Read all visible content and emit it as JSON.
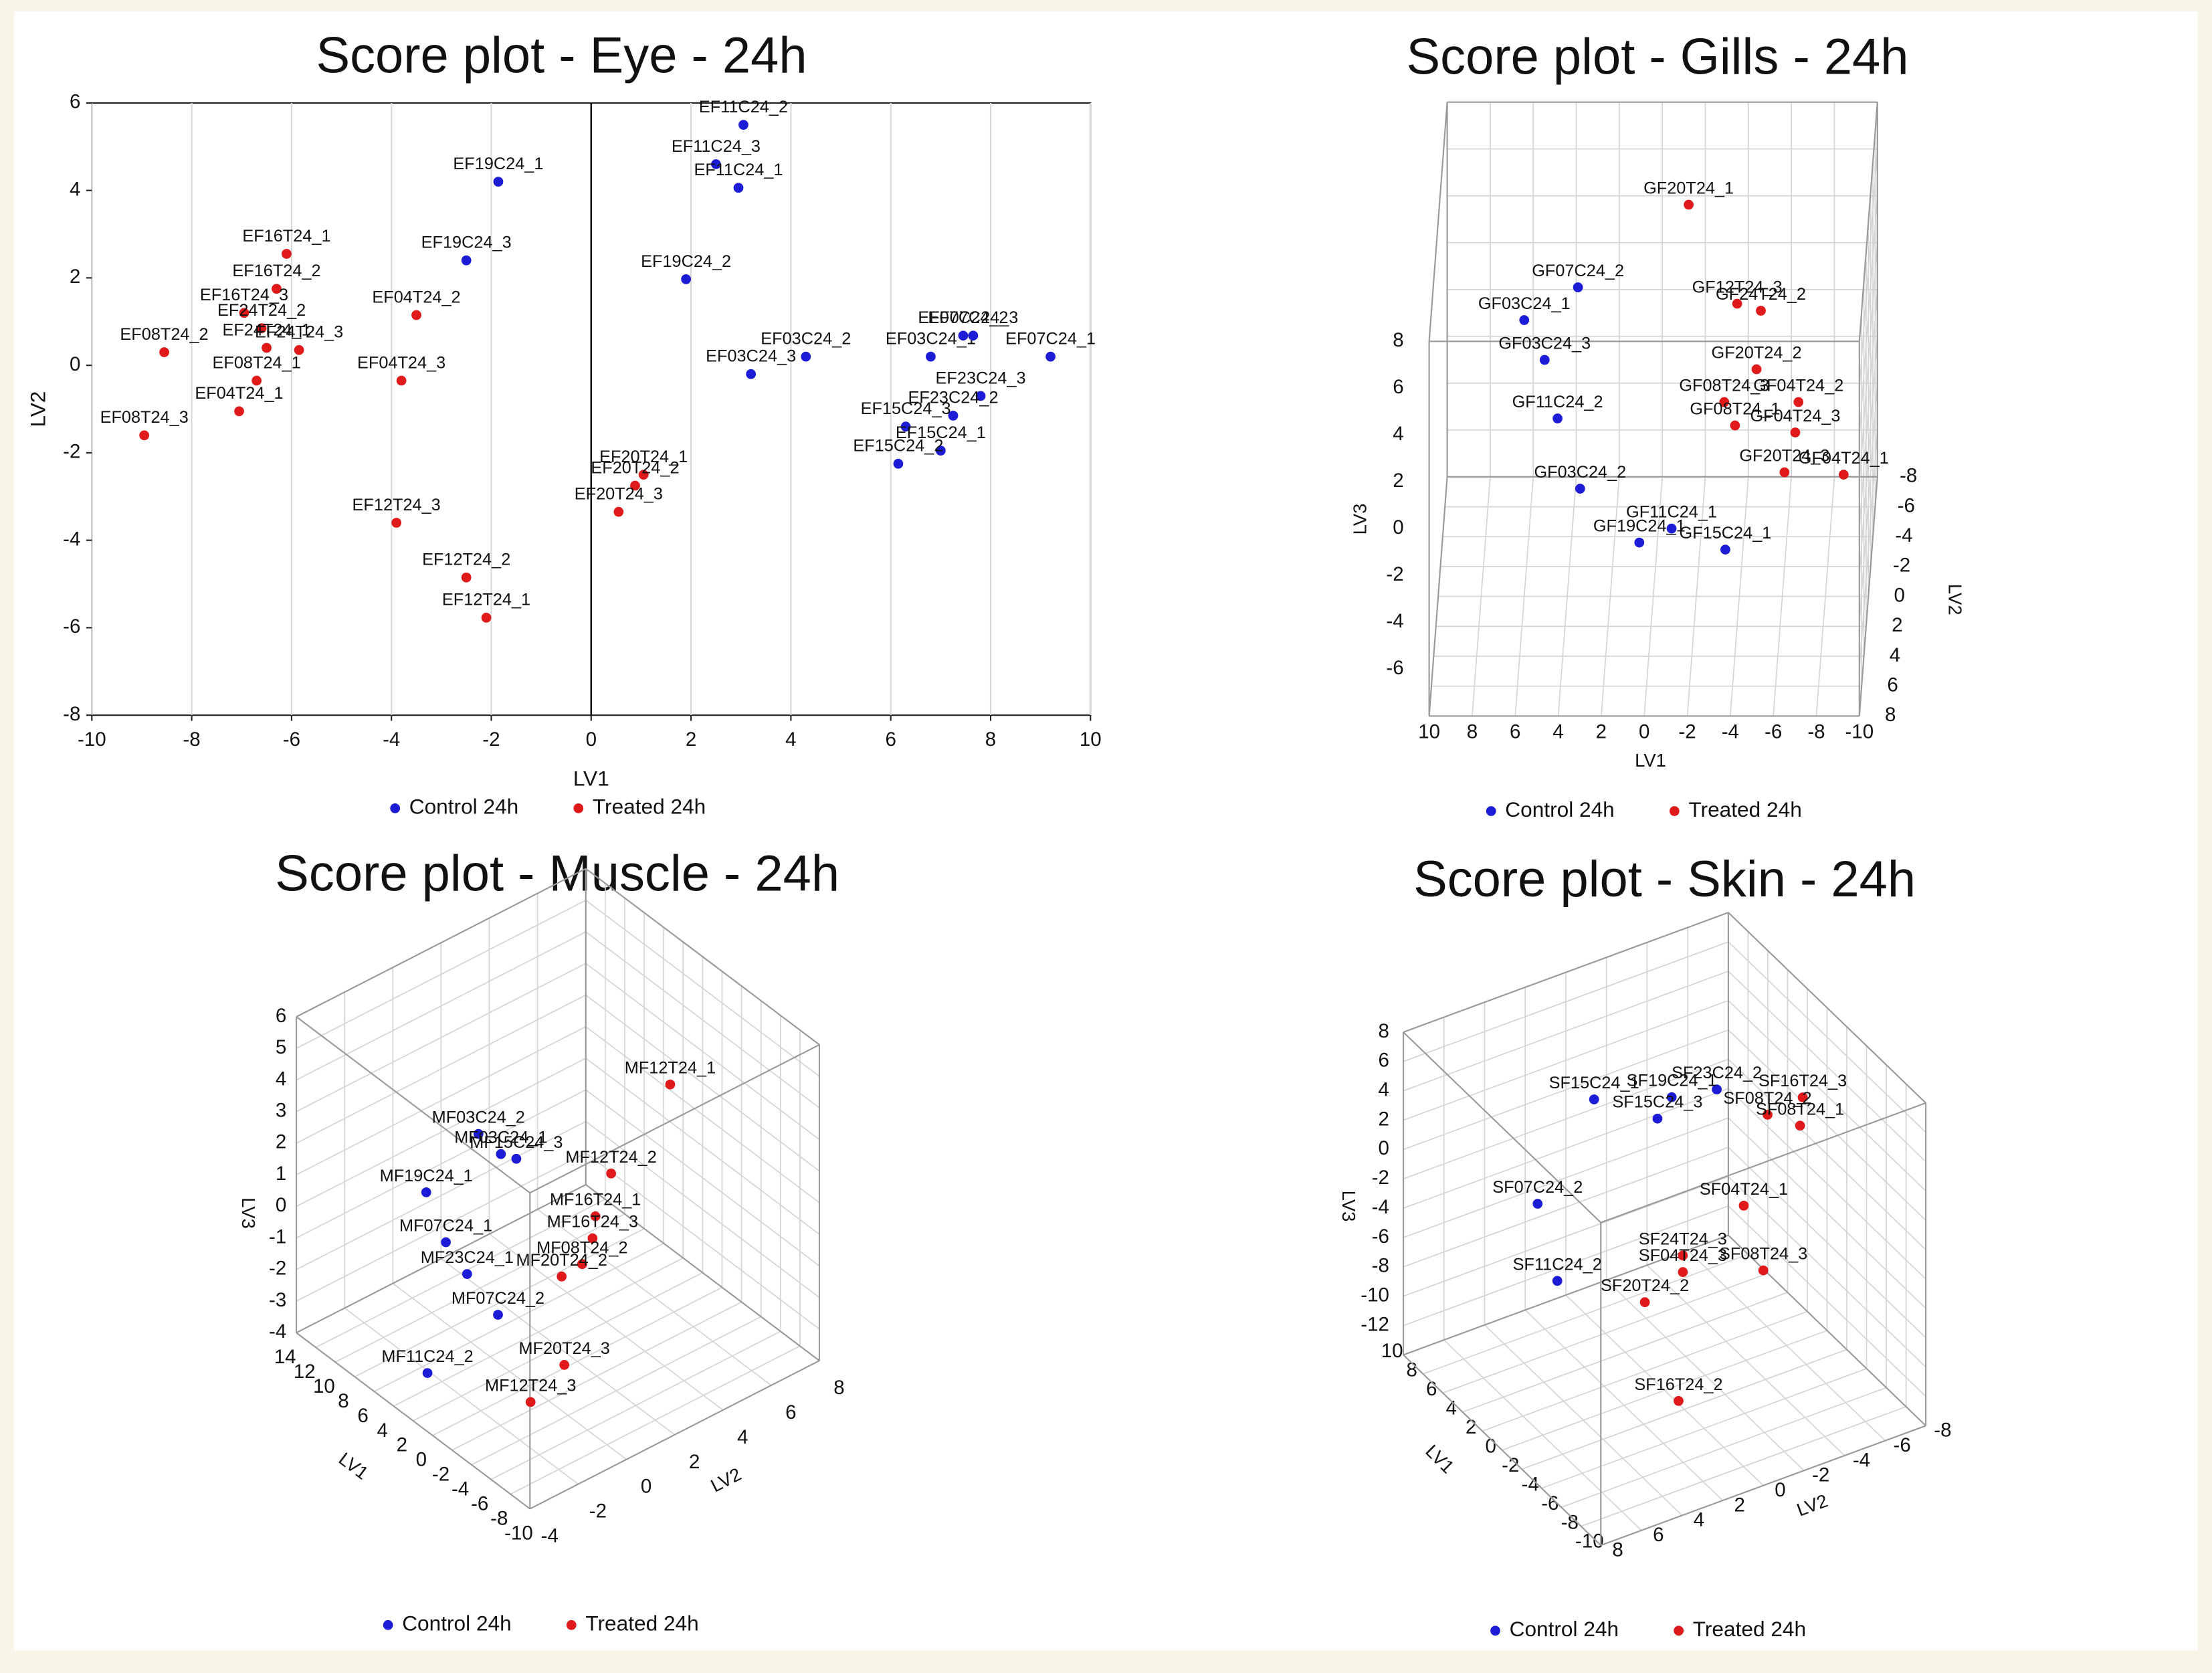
{
  "chart_data": [
    {
      "type": "scatter",
      "title": "Score plot - Eye - 24h",
      "xlabel": "LV1",
      "ylabel": "LV2",
      "xlim": [
        -10,
        10
      ],
      "ylim": [
        -8,
        6
      ],
      "xticks": [
        -10,
        -8,
        -6,
        -4,
        -2,
        0,
        2,
        4,
        6,
        8,
        10
      ],
      "yticks": [
        -8,
        -6,
        -4,
        -2,
        0,
        2,
        4,
        6
      ],
      "grid": "x",
      "legend": "bottom",
      "series": [
        {
          "name": "Control 24h",
          "color": "#1c1cd6",
          "labels": [
            "EF11C24_2",
            "EF11C24_3",
            "EF11C24_1",
            "EF19C24_1",
            "EF19C24_3",
            "EF19C24_2",
            "EF03C24_2",
            "EF03C24_3",
            "EF03C24_1",
            "EF07C24_2",
            "EF07C24_3",
            "EF07C24_1",
            "EF23C24_3",
            "EF23C24_2",
            "EF15C24_3",
            "EF15C24_1",
            "EF15C24_2"
          ],
          "x": [
            3.05,
            2.5,
            2.95,
            -1.86,
            -2.5,
            1.9,
            4.3,
            3.2,
            6.8,
            7.45,
            7.65,
            9.2,
            7.8,
            7.25,
            6.3,
            7.0,
            6.15
          ],
          "y": [
            5.5,
            4.6,
            4.06,
            4.2,
            2.4,
            1.97,
            0.2,
            -0.2,
            0.2,
            0.68,
            0.68,
            0.2,
            -0.7,
            -1.15,
            -1.4,
            -1.95,
            -2.25
          ]
        },
        {
          "name": "Treated 24h",
          "color": "#e01a1a",
          "labels": [
            "EF16T24_1",
            "EF16T24_2",
            "EF16T24_3",
            "EF24T24_2",
            "EF24T24_1",
            "EF24T24_3",
            "EF04T24_2",
            "EF08T24_2",
            "EF08T24_1",
            "EF04T24_3",
            "EF04T24_1",
            "EF08T24_3",
            "EF12T24_3",
            "EF12T24_2",
            "EF12T24_1",
            "EF20T24_1",
            "EF20T24_2",
            "EF20T24_3"
          ],
          "x": [
            -6.1,
            -6.3,
            -6.95,
            -6.6,
            -6.5,
            -5.85,
            -3.5,
            -8.55,
            -6.7,
            -3.8,
            -7.05,
            -8.95,
            -3.9,
            -2.5,
            -2.1,
            1.05,
            0.88,
            0.55
          ],
          "y": [
            2.55,
            1.75,
            1.2,
            0.85,
            0.4,
            0.35,
            1.15,
            0.3,
            -0.35,
            -0.35,
            -1.05,
            -1.6,
            -3.6,
            -4.85,
            -5.77,
            -2.5,
            -2.75,
            -3.35
          ]
        }
      ]
    },
    {
      "type": "scatter3d",
      "title": "Score plot - Gills - 24h",
      "xlabel": "LV1",
      "ylabel": "LV2",
      "zlabel": "LV3",
      "xlim": [
        -10,
        10
      ],
      "ylim": [
        -8,
        8
      ],
      "zlim": [
        -8,
        8
      ],
      "xticks": [
        -10,
        -8,
        -6,
        -4,
        -2,
        0,
        2,
        4,
        6,
        8,
        10
      ],
      "yticks": [
        -8,
        -6,
        -4,
        -2,
        0,
        2,
        4,
        6,
        8
      ],
      "zticks": [
        -6,
        -4,
        -2,
        0,
        2,
        4,
        6,
        8
      ],
      "grid": true,
      "legend": "bottom",
      "series": [
        {
          "name": "Control 24h",
          "color": "#1c1cd6",
          "labels": [
            "GF07C24_2",
            "GF03C24_1",
            "GF03C24_3",
            "GF11C24_2",
            "GF03C24_2",
            "GF19C24_1",
            "GF11C24_1",
            "GF15C24_1"
          ],
          "x": [
            3.5,
            6.0,
            5.05,
            4.45,
            3.4,
            0.65,
            -0.85,
            -3.35
          ],
          "y": [
            0,
            0,
            0,
            0,
            0,
            0,
            0,
            0
          ],
          "z": [
            5.2,
            3.8,
            2.1,
            -0.4,
            -3.4,
            -5.7,
            -5.1,
            -6.0
          ]
        },
        {
          "name": "Treated 24h",
          "color": "#e01a1a",
          "labels": [
            "GF20T24_1",
            "GF12T24_3",
            "GF24T24_2",
            "GF20T24_2",
            "GF08T24_3",
            "GF04T24_2",
            "GF08T24_1",
            "GF04T24_3",
            "GF20T24_3",
            "GF04T24_1"
          ],
          "x": [
            -1.54,
            -3.9,
            -5.0,
            -4.8,
            -3.3,
            -6.75,
            -3.8,
            -6.6,
            -6.1,
            -8.85
          ],
          "y": [
            -2,
            0,
            0,
            0,
            0,
            0,
            0,
            0,
            0,
            0
          ],
          "z": [
            7.45,
            4.5,
            4.2,
            1.7,
            0.3,
            0.3,
            -0.7,
            -1.0,
            -2.7,
            -2.8
          ]
        }
      ]
    },
    {
      "type": "scatter3d",
      "title": "Score plot - Muscle - 24h",
      "xlabel": "LV1",
      "ylabel": "LV2",
      "zlabel": "LV3",
      "xlim": [
        -10,
        14
      ],
      "ylim": [
        -4,
        8
      ],
      "zlim": [
        -4,
        6
      ],
      "xticks": [
        -10,
        -8,
        -6,
        -4,
        -2,
        0,
        2,
        4,
        6,
        8,
        10,
        12,
        14
      ],
      "yticks": [
        -4,
        -2,
        0,
        2,
        4,
        6,
        8
      ],
      "zticks": [
        -4,
        -3,
        -2,
        -1,
        0,
        1,
        2,
        3,
        4,
        5,
        6
      ],
      "grid": true,
      "legend": "bottom",
      "series": [
        {
          "name": "Control 24h",
          "color": "#1c1cd6",
          "labels": [
            "MF03C24_2",
            "MF03C24_1",
            "MF15C24_3",
            "MF19C24_1",
            "MF07C24_1",
            "MF23C24_1",
            "MF07C24_2",
            "MF11C24_2"
          ],
          "x": [
            0,
            0,
            0,
            4,
            0,
            0,
            0,
            4
          ],
          "y": [
            -2.1,
            -1.17,
            -0.53,
            -2.65,
            -3.45,
            -2.57,
            -1.29,
            -2.6
          ],
          "z": [
            4.8,
            3.8,
            3.4,
            2.24,
            1.9,
            0.55,
            -1.24,
            -3.5
          ]
        },
        {
          "name": "Treated 24h",
          "color": "#e01a1a",
          "labels": [
            "MF12T24_1",
            "MF12T24_2",
            "MF16T24_1",
            "MF16T24_3",
            "MF08T24_2",
            "MF20T24_2",
            "MF20T24_3",
            "MF12T24_3"
          ],
          "x": [
            0,
            0,
            0,
            0,
            0,
            0,
            0,
            -6
          ],
          "y": [
            5.85,
            3.4,
            2.75,
            2.63,
            2.2,
            1.35,
            1.46,
            -2.36
          ],
          "z": [
            3.26,
            1.4,
            0.3,
            -0.35,
            -1.0,
            -1.06,
            -3.9,
            -2.19
          ]
        }
      ]
    },
    {
      "type": "scatter3d",
      "title": "Score plot - Skin - 24h",
      "xlabel": "LV1",
      "ylabel": "LV2",
      "zlabel": "LV3",
      "xlim": [
        -10,
        10
      ],
      "ylim": [
        -8,
        8
      ],
      "zlim": [
        -14,
        8
      ],
      "xticks": [
        -10,
        -8,
        -6,
        -4,
        -2,
        0,
        2,
        4,
        6,
        8,
        10
      ],
      "yticks": [
        -8,
        -6,
        -4,
        -2,
        0,
        2,
        4,
        6,
        8
      ],
      "zticks": [
        -12,
        -10,
        -8,
        -6,
        -4,
        -2,
        0,
        2,
        4,
        6,
        8
      ],
      "grid": true,
      "legend": "bottom",
      "series": [
        {
          "name": "Control 24h",
          "color": "#1c1cd6",
          "labels": [
            "SF23C24_2",
            "SF15C24_1",
            "SF19C24_1",
            "SF15C24_3",
            "SF07C24_2",
            "SF11C24_2"
          ],
          "x": [
            0,
            0,
            0,
            0,
            0,
            0
          ],
          "y": [
            -2.57,
            3.47,
            -0.35,
            0.35,
            6.25,
            5.28
          ],
          "z": [
            5.2,
            7.6,
            5.8,
            4.7,
            1.9,
            -3.85
          ]
        },
        {
          "name": "Treated 24h",
          "color": "#e01a1a",
          "labels": [
            "SF16T24_3",
            "SF08T24_2",
            "SF08T24_1",
            "SF04T24_1",
            "SF24T24_3",
            "SF04T24_3",
            "SF08T24_3",
            "SF20T24_2",
            "SF16T24_2"
          ],
          "x": [
            0,
            0,
            0,
            0,
            0,
            0,
            0,
            0,
            -8
          ],
          "y": [
            -6.8,
            -5.07,
            -6.67,
            -3.9,
            -0.9,
            -0.9,
            -4.86,
            0.97,
            3.2
          ],
          "z": [
            2.5,
            2.2,
            0.64,
            -3.4,
            -5.27,
            -6.4,
            -8.3,
            -7.5,
            -7.9
          ]
        }
      ]
    }
  ]
}
